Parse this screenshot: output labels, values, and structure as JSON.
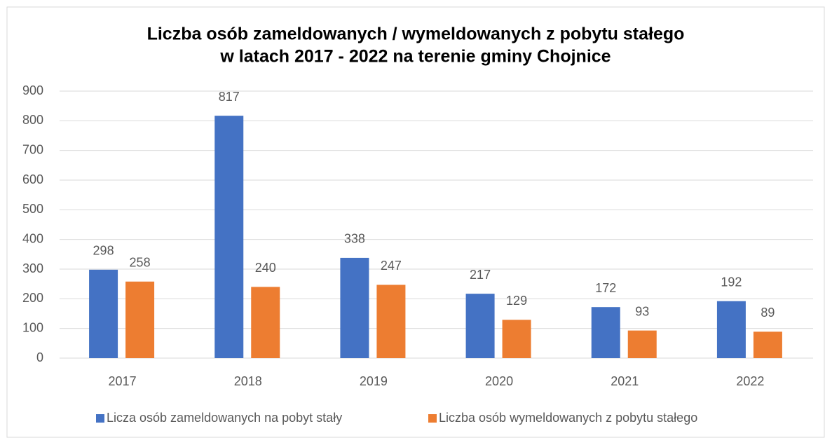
{
  "chart_data": {
    "type": "bar",
    "title": [
      "Liczba osób zameldowanych / wymeldowanych  z pobytu stałego",
      "w latach 2017 - 2022 na terenie gminy Chojnice"
    ],
    "categories": [
      "2017",
      "2018",
      "2019",
      "2020",
      "2021",
      "2022"
    ],
    "series": [
      {
        "name": "Licza osób zameldowanych na pobyt stały",
        "color": "#4472c4",
        "values": [
          298,
          817,
          338,
          217,
          172,
          192
        ]
      },
      {
        "name": "Liczba osób wymeldowanych z pobytu stałego",
        "color": "#ed7d31",
        "values": [
          258,
          240,
          247,
          129,
          93,
          89
        ]
      }
    ],
    "ylim": [
      0,
      900
    ],
    "yticks": [
      0,
      100,
      200,
      300,
      400,
      500,
      600,
      700,
      800,
      900
    ],
    "grid": true,
    "legend": "bottom"
  }
}
